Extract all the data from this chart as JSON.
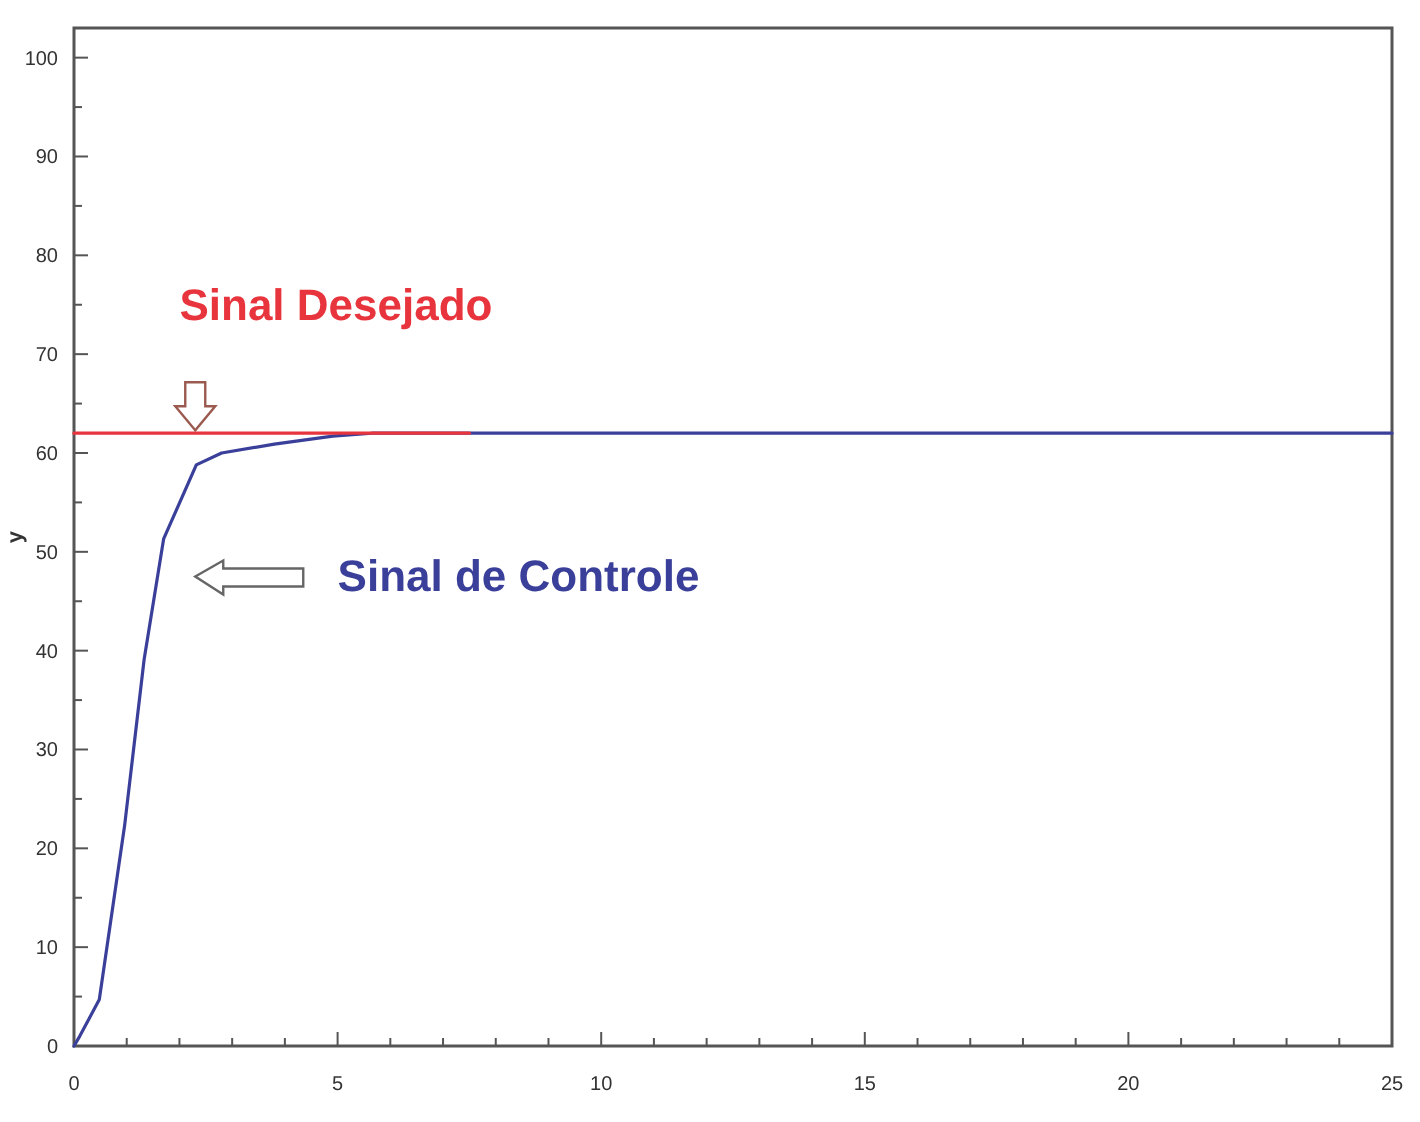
{
  "chart_data": {
    "type": "line",
    "ylabel": "y",
    "xlim": [
      0,
      25
    ],
    "ylim": [
      0,
      103
    ],
    "xticks": [
      0,
      {
        "value": 1,
        "label": null
      },
      {
        "value": 2,
        "label": null
      },
      {
        "value": 3,
        "label": null
      },
      {
        "value": 4,
        "label": null
      },
      5,
      {
        "value": 6,
        "label": null
      },
      {
        "value": 7,
        "label": null
      },
      {
        "value": 8,
        "label": null
      },
      {
        "value": 9,
        "label": null
      },
      10,
      {
        "value": 11,
        "label": null
      },
      {
        "value": 12,
        "label": null
      },
      {
        "value": 13,
        "label": null
      },
      {
        "value": 14,
        "label": null
      },
      15,
      {
        "value": 16,
        "label": null
      },
      {
        "value": 17,
        "label": null
      },
      {
        "value": 18,
        "label": null
      },
      {
        "value": 19,
        "label": null
      },
      20,
      {
        "value": 21,
        "label": null
      },
      {
        "value": 22,
        "label": null
      },
      {
        "value": 23,
        "label": null
      },
      {
        "value": 24,
        "label": null
      },
      25
    ],
    "yticks": [
      0,
      {
        "value": 5,
        "label": null
      },
      10,
      {
        "value": 15,
        "label": null
      },
      20,
      {
        "value": 25,
        "label": null
      },
      30,
      {
        "value": 35,
        "label": null
      },
      40,
      {
        "value": 45,
        "label": null
      },
      50,
      {
        "value": 55,
        "label": null
      },
      60,
      {
        "value": 65,
        "label": null
      },
      70,
      {
        "value": 75,
        "label": null
      },
      80,
      {
        "value": 85,
        "label": null
      },
      90,
      {
        "value": 95,
        "label": null
      },
      100
    ],
    "series": [
      {
        "name": "Sinal Desejado",
        "color": "#e8343c",
        "x": [
          0,
          7.5
        ],
        "values": [
          62,
          62
        ]
      },
      {
        "name": "Sinal de Controle",
        "color": "#3a3f9a",
        "x": [
          0,
          0.11,
          0.48,
          0.96,
          1.33,
          1.7,
          2.32,
          2.8,
          3.8,
          4.91,
          5.65,
          25
        ],
        "values": [
          0,
          1,
          4.7,
          22.3,
          39.1,
          51.3,
          58.8,
          60,
          60.9,
          61.7,
          62,
          62
        ]
      }
    ]
  }
}
